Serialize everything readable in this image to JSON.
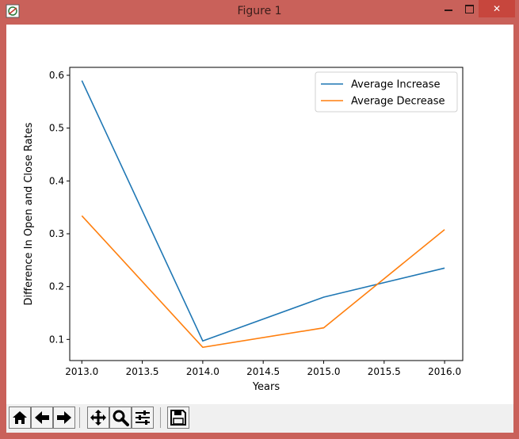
{
  "window": {
    "title": "Figure 1",
    "controls": {
      "minimize": "🗕",
      "maximize": "🗖",
      "close": "✕"
    },
    "icon": "matplotlib-figure-icon"
  },
  "toolbar": {
    "buttons": [
      {
        "name": "home-button",
        "icon": "home-icon"
      },
      {
        "name": "back-button",
        "icon": "arrow-left-icon"
      },
      {
        "name": "forward-button",
        "icon": "arrow-right-icon"
      },
      {
        "name": "pan-button",
        "icon": "move-icon"
      },
      {
        "name": "zoom-button",
        "icon": "magnifier-icon"
      },
      {
        "name": "configure-subplots-button",
        "icon": "sliders-icon"
      },
      {
        "name": "save-button",
        "icon": "floppy-disk-icon"
      }
    ]
  },
  "chart_data": {
    "type": "line",
    "title": "",
    "xlabel": "Years",
    "ylabel": "Difference In Open and Close Rates",
    "x": [
      2013.0,
      2014.0,
      2015.0,
      2016.0
    ],
    "xlim": [
      2012.9,
      2016.15
    ],
    "ylim": [
      0.06,
      0.615
    ],
    "xticks": [
      2013.0,
      2013.5,
      2014.0,
      2014.5,
      2015.0,
      2015.5,
      2016.0
    ],
    "xtick_labels": [
      "2013.0",
      "2013.5",
      "2014.0",
      "2014.5",
      "2015.0",
      "2015.5",
      "2016.0"
    ],
    "yticks": [
      0.1,
      0.2,
      0.3,
      0.4,
      0.5,
      0.6
    ],
    "ytick_labels": [
      "0.1",
      "0.2",
      "0.3",
      "0.4",
      "0.5",
      "0.6"
    ],
    "grid": false,
    "legend_position": "upper right",
    "series": [
      {
        "name": "Average Increase",
        "color": "#1f77b4",
        "values": [
          0.59,
          0.097,
          0.18,
          0.235
        ]
      },
      {
        "name": "Average Decrease",
        "color": "#ff7f0e",
        "values": [
          0.334,
          0.085,
          0.122,
          0.308
        ]
      }
    ]
  }
}
